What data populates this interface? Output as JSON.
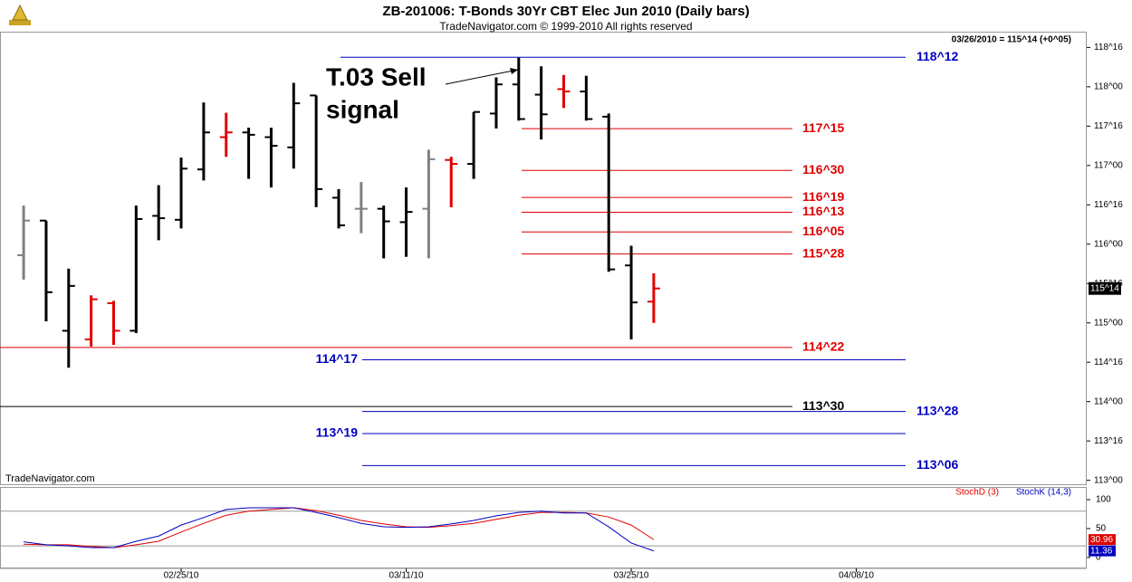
{
  "chart_data": [
    {
      "type": "ohlc",
      "title": "ZB-201006:  T-Bonds 30Yr CBT Elec Jun 2010  (Daily bars)",
      "subtitle": "TradeNavigator.com © 1999-2010 All rights reserved",
      "info": "03/26/2010 = 115^14 (+0^05)",
      "annotation": [
        "T.03 Sell",
        "signal"
      ],
      "watermark": "TradeNavigator.com",
      "xlim": [
        -1.05,
        47.24
      ],
      "ylim": [
        112.95,
        118.7
      ],
      "yticks": [
        {
          "value": 118.5,
          "label": "118^16"
        },
        {
          "value": 118,
          "label": "118^00"
        },
        {
          "value": 117.5,
          "label": "117^16"
        },
        {
          "value": 117,
          "label": "117^00"
        },
        {
          "value": 116.5,
          "label": "116^16"
        },
        {
          "value": 116,
          "label": "116^00"
        },
        {
          "value": 115.5,
          "label": "115^16"
        },
        {
          "value": 115,
          "label": "115^00"
        },
        {
          "value": 114.5,
          "label": "114^16"
        },
        {
          "value": 114,
          "label": "114^00"
        },
        {
          "value": 113.5,
          "label": "113^16"
        },
        {
          "value": 113,
          "label": "113^00"
        }
      ],
      "open": [
        115.86,
        116.3,
        114.9,
        114.79,
        115.25,
        114.9,
        116.36,
        116.31,
        116.95,
        117.36,
        117.42,
        117.36,
        117.23,
        117.89,
        116.59,
        116.45,
        116.45,
        116.28,
        116.45,
        117.07,
        117.02,
        117.66,
        118.03,
        117.9,
        117.97,
        117.94,
        117.62,
        115.73,
        115.27
      ],
      "high": [
        116.49,
        116.3,
        115.69,
        115.35,
        115.28,
        116.49,
        116.75,
        117.1,
        117.8,
        117.67,
        117.48,
        117.48,
        118.05,
        117.89,
        116.7,
        116.79,
        116.49,
        116.72,
        117.2,
        117.11,
        117.68,
        118.12,
        118.37,
        118.26,
        118.15,
        118.14,
        117.66,
        115.98,
        115.63
      ],
      "low": [
        115.55,
        115.02,
        114.43,
        114.7,
        114.72,
        114.87,
        116.05,
        116.2,
        116.81,
        117.11,
        116.83,
        116.72,
        116.96,
        116.47,
        116.2,
        116.14,
        115.82,
        115.84,
        115.82,
        116.47,
        116.83,
        117.47,
        117.57,
        117.33,
        117.73,
        117.57,
        115.65,
        114.79,
        115.0
      ],
      "close": [
        116.3,
        115.39,
        115.47,
        115.3,
        114.9,
        116.32,
        116.33,
        116.96,
        117.42,
        117.42,
        117.39,
        117.25,
        117.79,
        116.7,
        116.24,
        116.45,
        116.29,
        116.41,
        117.08,
        117.02,
        117.68,
        118.03,
        117.59,
        117.65,
        117.94,
        117.59,
        115.68,
        115.26,
        115.4375
      ],
      "colors": [
        "#808080",
        "#000000",
        "#000000",
        "#e00000",
        "#e00000",
        "#000000",
        "#000000",
        "#000000",
        "#000000",
        "#e00000",
        "#000000",
        "#000000",
        "#000000",
        "#000000",
        "#000000",
        "#808080",
        "#000000",
        "#000000",
        "#808080",
        "#e00000",
        "#000000",
        "#000000",
        "#000000",
        "#000000",
        "#e00000",
        "#000000",
        "#000000",
        "#000000",
        "#e00000"
      ],
      "last_price": {
        "value": 115.4375,
        "label": "115^14"
      },
      "level_lines": [
        {
          "value": 118.375,
          "label": "118^12",
          "color": "#0000c0"
        },
        {
          "value": 117.46875,
          "label": "117^15",
          "color": "#e00000"
        },
        {
          "value": 116.9375,
          "label": "116^30",
          "color": "#e00000"
        },
        {
          "value": 116.59375,
          "label": "116^19",
          "color": "#e00000"
        },
        {
          "value": 116.40625,
          "label": "116^13",
          "color": "#e00000"
        },
        {
          "value": 116.15625,
          "label": "116^05",
          "color": "#e00000"
        },
        {
          "value": 115.875,
          "label": "115^28",
          "color": "#e00000"
        },
        {
          "value": 114.6875,
          "label": "114^22",
          "color": "#e00000"
        },
        {
          "value": 114.53125,
          "label": "114^17",
          "color": "#0000c0"
        },
        {
          "value": 113.9375,
          "label": "113^30",
          "color": "#000000"
        },
        {
          "value": 113.875,
          "label": "113^28",
          "color": "#0000c0"
        },
        {
          "value": 113.59375,
          "label": "113^19",
          "color": "#0000c0"
        },
        {
          "value": 113.1875,
          "label": "113^06",
          "color": "#0000c0"
        }
      ]
    },
    {
      "type": "line",
      "xlim": [
        -1.05,
        47.24
      ],
      "ylim": [
        -19,
        122
      ],
      "yticks": [
        100,
        50,
        0
      ],
      "reference_lines": [
        80,
        20
      ],
      "xticks": [
        {
          "value": 7,
          "label": "02/25/10"
        },
        {
          "value": 17,
          "label": "03/11/10"
        },
        {
          "value": 27,
          "label": "03/25/10"
        },
        {
          "value": 37,
          "label": "04/08/10"
        }
      ],
      "series": [
        {
          "name": "StochD (3)",
          "color": "#e00000",
          "values": [
            23,
            22,
            22,
            19,
            17,
            22,
            28,
            44,
            59,
            73,
            80,
            83,
            86,
            81,
            73,
            64,
            58,
            53,
            52,
            55,
            59,
            66,
            73,
            78,
            78,
            77,
            70,
            56,
            30.96
          ]
        },
        {
          "name": "StochK (14,3)",
          "color": "#0000c0",
          "values": [
            27,
            22,
            20,
            17,
            17,
            28,
            37,
            56,
            69,
            83,
            86,
            86,
            86,
            78,
            69,
            59,
            53,
            52,
            53,
            58,
            64,
            72,
            78,
            80,
            77,
            77,
            53,
            25,
            11.36
          ]
        }
      ]
    }
  ]
}
